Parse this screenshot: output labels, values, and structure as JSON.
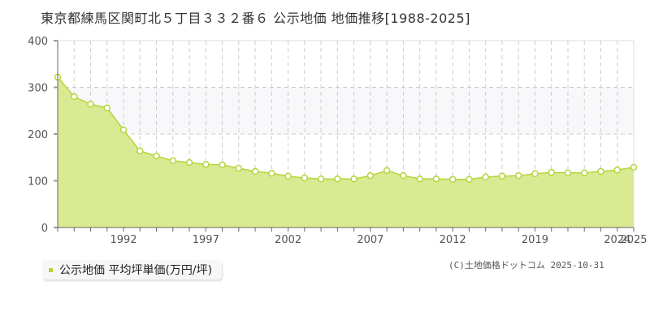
{
  "title": "東京都練馬区関町北５丁目３３２番６ 公示地価 地価推移[1988-2025]",
  "legend": {
    "label": "公示地価 平均坪単価(万円/坪)",
    "color": "#b5d53a"
  },
  "credit": "(C)土地価格ドットコム 2025-10-31",
  "colors": {
    "fill": "#d9ea92",
    "line": "#b5d53a",
    "band": "#f8f8fa",
    "grid": "#cccccc",
    "axis": "#666666"
  },
  "chart_data": {
    "type": "area",
    "title": "東京都練馬区関町北５丁目３３２番６ 公示地価 地価推移[1988-2025]",
    "xlabel": "",
    "ylabel": "",
    "ylim": [
      0,
      400
    ],
    "yticks": [
      0,
      100,
      200,
      300,
      400
    ],
    "xtick_labels": [
      {
        "index": 4,
        "label": "1992"
      },
      {
        "index": 9,
        "label": "1997"
      },
      {
        "index": 14,
        "label": "2002"
      },
      {
        "index": 19,
        "label": "2007"
      },
      {
        "index": 24,
        "label": "2012"
      },
      {
        "index": 29,
        "label": "2019"
      },
      {
        "index": 34,
        "label": "2024"
      },
      {
        "index": 35,
        "label": "2025"
      }
    ],
    "grid": true,
    "legend_position": "bottom-left",
    "series": [
      {
        "name": "公示地価 平均坪単価(万円/坪)",
        "values": [
          322,
          280,
          264,
          256,
          209,
          164,
          153,
          143,
          139,
          135,
          134,
          127,
          120,
          116,
          110,
          106,
          104,
          104,
          104,
          111,
          122,
          111,
          104,
          104,
          103,
          103,
          108,
          110,
          111,
          115,
          118,
          117,
          117,
          120,
          123,
          129
        ]
      }
    ]
  }
}
